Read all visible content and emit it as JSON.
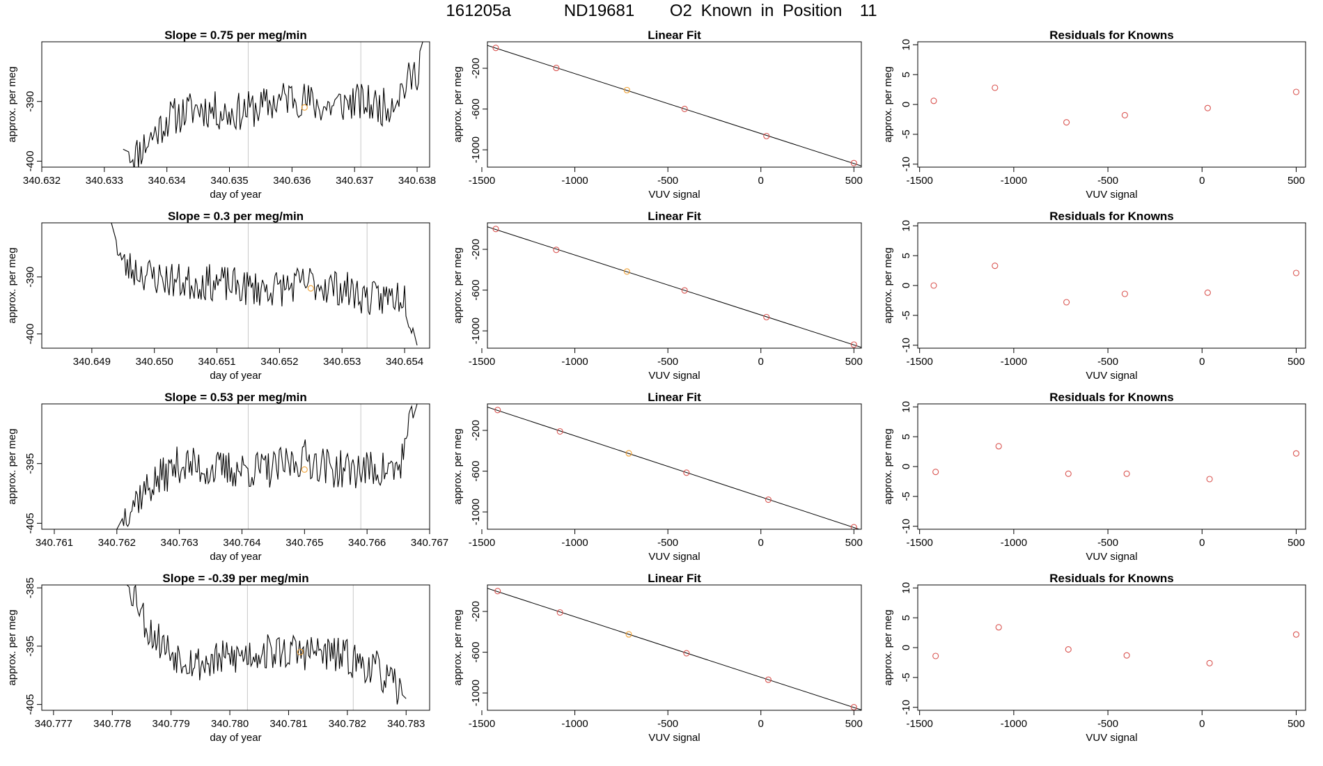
{
  "figure_title": "161205a      ND19681    O2 Known in Position  11",
  "colors": {
    "trace": "#000000",
    "fit_point": "#d9534f",
    "highlight_point": "#f0a030",
    "vline": "#c8c8c8",
    "axis": "#000000"
  },
  "chart_data": [
    {
      "type": "line",
      "title": "Slope =  0.75  per meg/min",
      "xlabel": "day of year",
      "ylabel": "approx. per meg",
      "xlim": [
        340.632,
        340.6382
      ],
      "ylim": [
        -401,
        -380
      ],
      "xticks": [
        "340.632",
        "340.633",
        "340.634",
        "340.635",
        "340.636",
        "340.637",
        "340.638"
      ],
      "xtick_values": [
        340.632,
        340.633,
        340.634,
        340.635,
        340.636,
        340.637,
        340.638
      ],
      "yticks": [
        "-400",
        "-390"
      ],
      "ytick_values": [
        -400,
        -390
      ],
      "vlines": [
        340.6353,
        340.6371
      ],
      "trace_start": 340.6333,
      "trace_end": 340.6382,
      "trace_seed": 11,
      "trace_mid": -390.5,
      "trace_x": [
        340.6333,
        340.6335,
        340.634,
        340.6345,
        340.635,
        340.6355,
        340.636,
        340.6365,
        340.637,
        340.6375,
        340.638,
        340.6382
      ],
      "trace_y": [
        -398,
        -399,
        -393,
        -391,
        -392,
        -391,
        -389,
        -391,
        -390,
        -391,
        -385,
        -374
      ],
      "highlight": {
        "x": 340.6362,
        "y": -391
      }
    },
    {
      "type": "scatter",
      "title": "Linear Fit",
      "xlabel": "VUV signal",
      "ylabel": "approx. per meg",
      "xlim": [
        -1470,
        540
      ],
      "ylim": [
        -1170,
        60
      ],
      "xticks": [
        "-1500",
        "-1000",
        "-500",
        "0",
        "500"
      ],
      "xtick_values": [
        -1500,
        -1000,
        -500,
        0,
        500
      ],
      "yticks": [
        "-1000",
        "-600",
        "-200"
      ],
      "ytick_values": [
        -1000,
        -600,
        -200
      ],
      "x": [
        -1425,
        -1100,
        -720,
        -410,
        30,
        500
      ],
      "y": [
        0,
        -197,
        -414,
        -599,
        -865,
        -1130
      ],
      "highlight_index": 2
    },
    {
      "type": "scatter",
      "title": "Residuals for Knowns",
      "xlabel": "VUV signal",
      "ylabel": "approx. per meg",
      "xlim": [
        -1510,
        550
      ],
      "ylim": [
        -10.5,
        10.5
      ],
      "xticks": [
        "-1500",
        "-1000",
        "-500",
        "0",
        "500"
      ],
      "xtick_values": [
        -1500,
        -1000,
        -500,
        0,
        500
      ],
      "yticks": [
        "-10",
        "-5",
        "0",
        "5",
        "10"
      ],
      "ytick_values": [
        -10,
        -5,
        0,
        5,
        10
      ],
      "x": [
        -1425,
        -1100,
        -720,
        -410,
        30,
        500
      ],
      "y": [
        0.6,
        2.8,
        -3.0,
        -1.8,
        -0.6,
        2.1
      ]
    },
    {
      "type": "line",
      "title": "Slope =  0.3  per meg/min",
      "xlabel": "day of year",
      "ylabel": "approx. per meg",
      "xlim": [
        340.6482,
        340.6544
      ],
      "ylim": [
        -402.5,
        -380.5
      ],
      "xticks": [
        "340.649",
        "340.650",
        "340.651",
        "340.652",
        "340.653",
        "340.654"
      ],
      "xtick_values": [
        340.649,
        340.65,
        340.651,
        340.652,
        340.653,
        340.654
      ],
      "yticks": [
        "-400",
        "-390"
      ],
      "ytick_values": [
        -400,
        -390
      ],
      "vlines": [
        340.6515,
        340.6534
      ],
      "trace_start": 340.6493,
      "trace_end": 340.6542,
      "trace_seed": 23,
      "trace_mid": -391.5,
      "trace_x": [
        340.6493,
        340.6495,
        340.65,
        340.6505,
        340.651,
        340.6515,
        340.652,
        340.6525,
        340.653,
        340.6535,
        340.654,
        340.6542
      ],
      "trace_y": [
        -380,
        -388,
        -390,
        -391,
        -391,
        -392,
        -392,
        -391,
        -392,
        -394,
        -393,
        -402
      ],
      "highlight": {
        "x": 340.6525,
        "y": -392
      }
    },
    {
      "type": "scatter",
      "title": "Linear Fit",
      "xlabel": "VUV signal",
      "ylabel": "approx. per meg",
      "xlim": [
        -1470,
        540
      ],
      "ylim": [
        -1170,
        60
      ],
      "xticks": [
        "-1500",
        "-1000",
        "-500",
        "0",
        "500"
      ],
      "xtick_values": [
        -1500,
        -1000,
        -500,
        0,
        500
      ],
      "yticks": [
        "-1000",
        "-600",
        "-200"
      ],
      "ytick_values": [
        -1000,
        -600,
        -200
      ],
      "x": [
        -1425,
        -1100,
        -720,
        -410,
        30,
        500
      ],
      "y": [
        0,
        -205,
        -418,
        -603,
        -865,
        -1135
      ],
      "highlight_index": 2
    },
    {
      "type": "scatter",
      "title": "Residuals for Knowns",
      "xlabel": "VUV signal",
      "ylabel": "approx. per meg",
      "xlim": [
        -1510,
        550
      ],
      "ylim": [
        -10.5,
        10.5
      ],
      "xticks": [
        "-1500",
        "-1000",
        "-500",
        "0",
        "500"
      ],
      "xtick_values": [
        -1500,
        -1000,
        -500,
        0,
        500
      ],
      "yticks": [
        "-10",
        "-5",
        "0",
        "5",
        "10"
      ],
      "ytick_values": [
        -10,
        -5,
        0,
        5,
        10
      ],
      "x": [
        -1425,
        -1100,
        -720,
        -410,
        30,
        500
      ],
      "y": [
        0.0,
        3.3,
        -2.8,
        -1.4,
        -1.2,
        2.1
      ]
    },
    {
      "type": "line",
      "title": "Slope =  0.53  per meg/min",
      "xlabel": "day of year",
      "ylabel": "approx. per meg",
      "xlim": [
        340.7608,
        340.767
      ],
      "ylim": [
        -406,
        -385
      ],
      "xticks": [
        "340.761",
        "340.762",
        "340.763",
        "340.764",
        "340.765",
        "340.766",
        "340.767"
      ],
      "xtick_values": [
        340.761,
        340.762,
        340.763,
        340.764,
        340.765,
        340.766,
        340.767
      ],
      "yticks": [
        "-405",
        "-395"
      ],
      "ytick_values": [
        -405,
        -395
      ],
      "vlines": [
        340.7641,
        340.7659
      ],
      "trace_start": 340.762,
      "trace_end": 340.7668,
      "trace_seed": 37,
      "trace_mid": -396.5,
      "trace_x": [
        340.762,
        340.7622,
        340.7625,
        340.763,
        340.7635,
        340.764,
        340.7645,
        340.765,
        340.7655,
        340.766,
        340.7665,
        340.7668
      ],
      "trace_y": [
        -406,
        -402,
        -399,
        -395,
        -396,
        -396,
        -396,
        -394,
        -396,
        -396,
        -396,
        -385
      ],
      "highlight": {
        "x": 340.765,
        "y": -396
      }
    },
    {
      "type": "scatter",
      "title": "Linear Fit",
      "xlabel": "VUV signal",
      "ylabel": "approx. per meg",
      "xlim": [
        -1470,
        540
      ],
      "ylim": [
        -1170,
        60
      ],
      "xticks": [
        "-1500",
        "-1000",
        "-500",
        "0",
        "500"
      ],
      "xtick_values": [
        -1500,
        -1000,
        -500,
        0,
        500
      ],
      "yticks": [
        "-1000",
        "-600",
        "-200"
      ],
      "ytick_values": [
        -1000,
        -600,
        -200
      ],
      "x": [
        -1415,
        -1080,
        -710,
        -400,
        40,
        500
      ],
      "y": [
        0,
        -210,
        -425,
        -615,
        -880,
        -1150
      ],
      "highlight_index": 2
    },
    {
      "type": "scatter",
      "title": "Residuals for Knowns",
      "xlabel": "VUV signal",
      "ylabel": "approx. per meg",
      "xlim": [
        -1510,
        550
      ],
      "ylim": [
        -10.5,
        10.5
      ],
      "xticks": [
        "-1500",
        "-1000",
        "-500",
        "0",
        "500"
      ],
      "xtick_values": [
        -1500,
        -1000,
        -500,
        0,
        500
      ],
      "yticks": [
        "-10",
        "-5",
        "0",
        "5",
        "10"
      ],
      "ytick_values": [
        -10,
        -5,
        0,
        5,
        10
      ],
      "x": [
        -1415,
        -1080,
        -710,
        -400,
        40,
        500
      ],
      "y": [
        -0.9,
        3.4,
        -1.2,
        -1.2,
        -2.1,
        2.2
      ]
    },
    {
      "type": "line",
      "title": "Slope =  -0.39  per meg/min",
      "xlabel": "day of year",
      "ylabel": "approx. per meg",
      "xlim": [
        340.7768,
        340.7834
      ],
      "ylim": [
        -406,
        -384.5
      ],
      "xticks": [
        "340.777",
        "340.778",
        "340.779",
        "340.780",
        "340.781",
        "340.782",
        "340.783"
      ],
      "xtick_values": [
        340.777,
        340.778,
        340.779,
        340.78,
        340.781,
        340.782,
        340.783
      ],
      "yticks": [
        "-405",
        "-395",
        "-385"
      ],
      "ytick_values": [
        -405,
        -395,
        -385
      ],
      "vlines": [
        340.7803,
        340.7821
      ],
      "trace_start": 340.7782,
      "trace_end": 340.783,
      "trace_seed": 53,
      "trace_mid": -397,
      "trace_x": [
        340.7782,
        340.7784,
        340.7786,
        340.779,
        340.7795,
        340.78,
        340.7805,
        340.781,
        340.7815,
        340.782,
        340.7825,
        340.783
      ],
      "trace_y": [
        -384,
        -386,
        -392,
        -396,
        -398,
        -397,
        -396,
        -396,
        -396,
        -397,
        -399,
        -404
      ],
      "highlight": {
        "x": 340.7812,
        "y": -396
      }
    },
    {
      "type": "scatter",
      "title": "Linear Fit",
      "xlabel": "VUV signal",
      "ylabel": "approx. per meg",
      "xlim": [
        -1470,
        540
      ],
      "ylim": [
        -1170,
        60
      ],
      "xticks": [
        "-1500",
        "-1000",
        "-500",
        "0",
        "500"
      ],
      "xtick_values": [
        -1500,
        -1000,
        -500,
        0,
        500
      ],
      "yticks": [
        "-1000",
        "-600",
        "-200"
      ],
      "ytick_values": [
        -1000,
        -600,
        -200
      ],
      "x": [
        -1415,
        -1080,
        -710,
        -400,
        40,
        500
      ],
      "y": [
        0,
        -210,
        -425,
        -610,
        -870,
        -1140
      ],
      "highlight_index": 2
    },
    {
      "type": "scatter",
      "title": "Residuals for Knowns",
      "xlabel": "VUV signal",
      "ylabel": "approx. per meg",
      "xlim": [
        -1510,
        550
      ],
      "ylim": [
        -10.5,
        10.5
      ],
      "xticks": [
        "-1500",
        "-1000",
        "-500",
        "0",
        "500"
      ],
      "xtick_values": [
        -1500,
        -1000,
        -500,
        0,
        500
      ],
      "yticks": [
        "-10",
        "-5",
        "0",
        "5",
        "10"
      ],
      "ytick_values": [
        -10,
        -5,
        0,
        5,
        10
      ],
      "x": [
        -1415,
        -1080,
        -710,
        -400,
        40,
        500
      ],
      "y": [
        -1.4,
        3.4,
        -0.3,
        -1.3,
        -2.6,
        2.2
      ]
    }
  ]
}
